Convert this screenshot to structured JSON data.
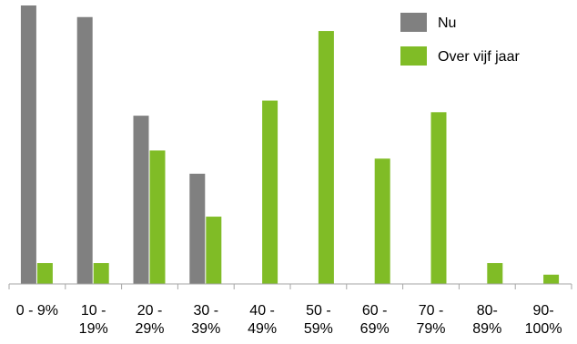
{
  "chart_data": {
    "type": "bar",
    "title": "",
    "xlabel": "",
    "ylabel": "",
    "categories": [
      [
        "0 - 9%"
      ],
      [
        "10 -",
        "19%"
      ],
      [
        "20 -",
        "29%"
      ],
      [
        "30 -",
        "39%"
      ],
      [
        "40 -",
        "49%"
      ],
      [
        "50 -",
        "59%"
      ],
      [
        "60 -",
        "69%"
      ],
      [
        "70 -",
        "79%"
      ],
      [
        "80-",
        "89%"
      ],
      [
        "90-",
        "100%"
      ]
    ],
    "series": [
      {
        "name": "Nu",
        "color": "#808080",
        "values": [
          24,
          23,
          14.5,
          9.5,
          0,
          0,
          0,
          0,
          0,
          0
        ]
      },
      {
        "name": "Over vijf jaar",
        "color": "#80bc26",
        "values": [
          1.8,
          1.8,
          11.5,
          5.8,
          15.8,
          21.8,
          10.8,
          14.8,
          1.8,
          0.8
        ]
      }
    ],
    "ylim": [
      0,
      24
    ],
    "grid": false,
    "legend_position": "top-right"
  }
}
